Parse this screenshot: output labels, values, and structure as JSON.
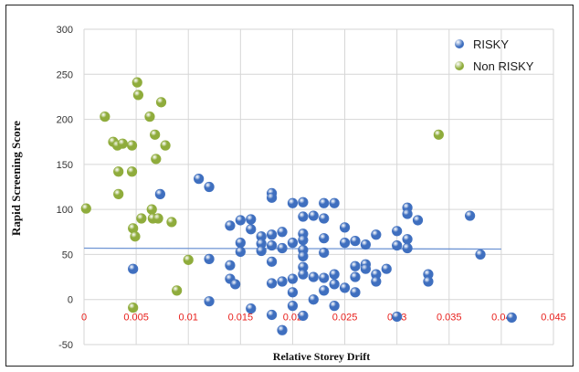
{
  "chart_data": {
    "type": "scatter",
    "title": "",
    "xlabel": "Relative Storey Drift",
    "ylabel": "Rapid Screening Score",
    "xlim": [
      0,
      0.045
    ],
    "ylim": [
      -50,
      300
    ],
    "x_ticks": [
      "0",
      "0.005",
      "0.01",
      "0.015",
      "0.02",
      "0.025",
      "0.03",
      "0.035",
      "0.04",
      "0.045"
    ],
    "y_ticks": [
      "300",
      "250",
      "200",
      "150",
      "100",
      "50",
      "0",
      "-50"
    ],
    "x_tick_color": "#e8201c",
    "grid": true,
    "legend_position": "top-right",
    "trendline": {
      "x": [
        0,
        0.04
      ],
      "y": [
        57,
        56
      ],
      "color": "#6f95d4"
    },
    "series": [
      {
        "name": "RISKY",
        "color": "#3f6fbf",
        "points": [
          [
            0.0047,
            34
          ],
          [
            0.0073,
            117
          ],
          [
            0.011,
            134
          ],
          [
            0.012,
            125
          ],
          [
            0.012,
            45
          ],
          [
            0.012,
            -2
          ],
          [
            0.014,
            82
          ],
          [
            0.014,
            38
          ],
          [
            0.014,
            23
          ],
          [
            0.0145,
            17
          ],
          [
            0.015,
            88
          ],
          [
            0.015,
            63
          ],
          [
            0.015,
            53
          ],
          [
            0.016,
            89
          ],
          [
            0.016,
            78
          ],
          [
            0.016,
            -10
          ],
          [
            0.017,
            70
          ],
          [
            0.017,
            62
          ],
          [
            0.017,
            54
          ],
          [
            0.018,
            118
          ],
          [
            0.018,
            113
          ],
          [
            0.018,
            72
          ],
          [
            0.018,
            60
          ],
          [
            0.018,
            42
          ],
          [
            0.018,
            18
          ],
          [
            0.018,
            -17
          ],
          [
            0.019,
            75
          ],
          [
            0.019,
            57
          ],
          [
            0.019,
            20
          ],
          [
            0.019,
            -34
          ],
          [
            0.02,
            107
          ],
          [
            0.02,
            63
          ],
          [
            0.02,
            23
          ],
          [
            0.02,
            8
          ],
          [
            0.02,
            -7
          ],
          [
            0.021,
            108
          ],
          [
            0.021,
            92
          ],
          [
            0.021,
            73
          ],
          [
            0.021,
            66
          ],
          [
            0.021,
            55
          ],
          [
            0.021,
            48
          ],
          [
            0.021,
            36
          ],
          [
            0.021,
            28
          ],
          [
            0.021,
            -18
          ],
          [
            0.022,
            93
          ],
          [
            0.022,
            25
          ],
          [
            0.022,
            0
          ],
          [
            0.023,
            107
          ],
          [
            0.023,
            90
          ],
          [
            0.023,
            68
          ],
          [
            0.023,
            52
          ],
          [
            0.023,
            24
          ],
          [
            0.023,
            10
          ],
          [
            0.024,
            107
          ],
          [
            0.024,
            28
          ],
          [
            0.024,
            17
          ],
          [
            0.024,
            -7
          ],
          [
            0.025,
            80
          ],
          [
            0.025,
            63
          ],
          [
            0.025,
            13
          ],
          [
            0.026,
            65
          ],
          [
            0.026,
            37
          ],
          [
            0.026,
            25
          ],
          [
            0.026,
            8
          ],
          [
            0.027,
            61
          ],
          [
            0.027,
            39
          ],
          [
            0.027,
            34
          ],
          [
            0.028,
            72
          ],
          [
            0.028,
            28
          ],
          [
            0.028,
            20
          ],
          [
            0.029,
            34
          ],
          [
            0.03,
            76
          ],
          [
            0.03,
            60
          ],
          [
            0.03,
            -19
          ],
          [
            0.031,
            102
          ],
          [
            0.031,
            95
          ],
          [
            0.031,
            67
          ],
          [
            0.031,
            57
          ],
          [
            0.032,
            88
          ],
          [
            0.033,
            28
          ],
          [
            0.033,
            20
          ],
          [
            0.037,
            93
          ],
          [
            0.038,
            50
          ],
          [
            0.041,
            -20
          ]
        ]
      },
      {
        "name": "Non RISKY",
        "color": "#8fac3c",
        "points": [
          [
            0.0002,
            101
          ],
          [
            0.002,
            203
          ],
          [
            0.0028,
            175
          ],
          [
            0.0032,
            171
          ],
          [
            0.0033,
            142
          ],
          [
            0.0033,
            117
          ],
          [
            0.0037,
            173
          ],
          [
            0.0046,
            171
          ],
          [
            0.0046,
            142
          ],
          [
            0.0047,
            79
          ],
          [
            0.0049,
            70
          ],
          [
            0.0047,
            -9
          ],
          [
            0.0051,
            241
          ],
          [
            0.0052,
            227
          ],
          [
            0.0055,
            90
          ],
          [
            0.0063,
            203
          ],
          [
            0.0065,
            100
          ],
          [
            0.0066,
            90
          ],
          [
            0.0068,
            183
          ],
          [
            0.0069,
            156
          ],
          [
            0.0071,
            90
          ],
          [
            0.0074,
            219
          ],
          [
            0.0078,
            171
          ],
          [
            0.0084,
            86
          ],
          [
            0.0089,
            10
          ],
          [
            0.01,
            44
          ],
          [
            0.034,
            183
          ]
        ]
      }
    ]
  }
}
